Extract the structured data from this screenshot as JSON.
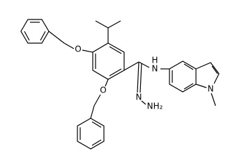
{
  "atoms": [
    {
      "label": "O"
    },
    {
      "label": "O"
    },
    {
      "label": "N"
    },
    {
      "label": "H"
    },
    {
      "label": "N"
    },
    {
      "label": "NH₂"
    },
    {
      "label": "N"
    }
  ]
}
